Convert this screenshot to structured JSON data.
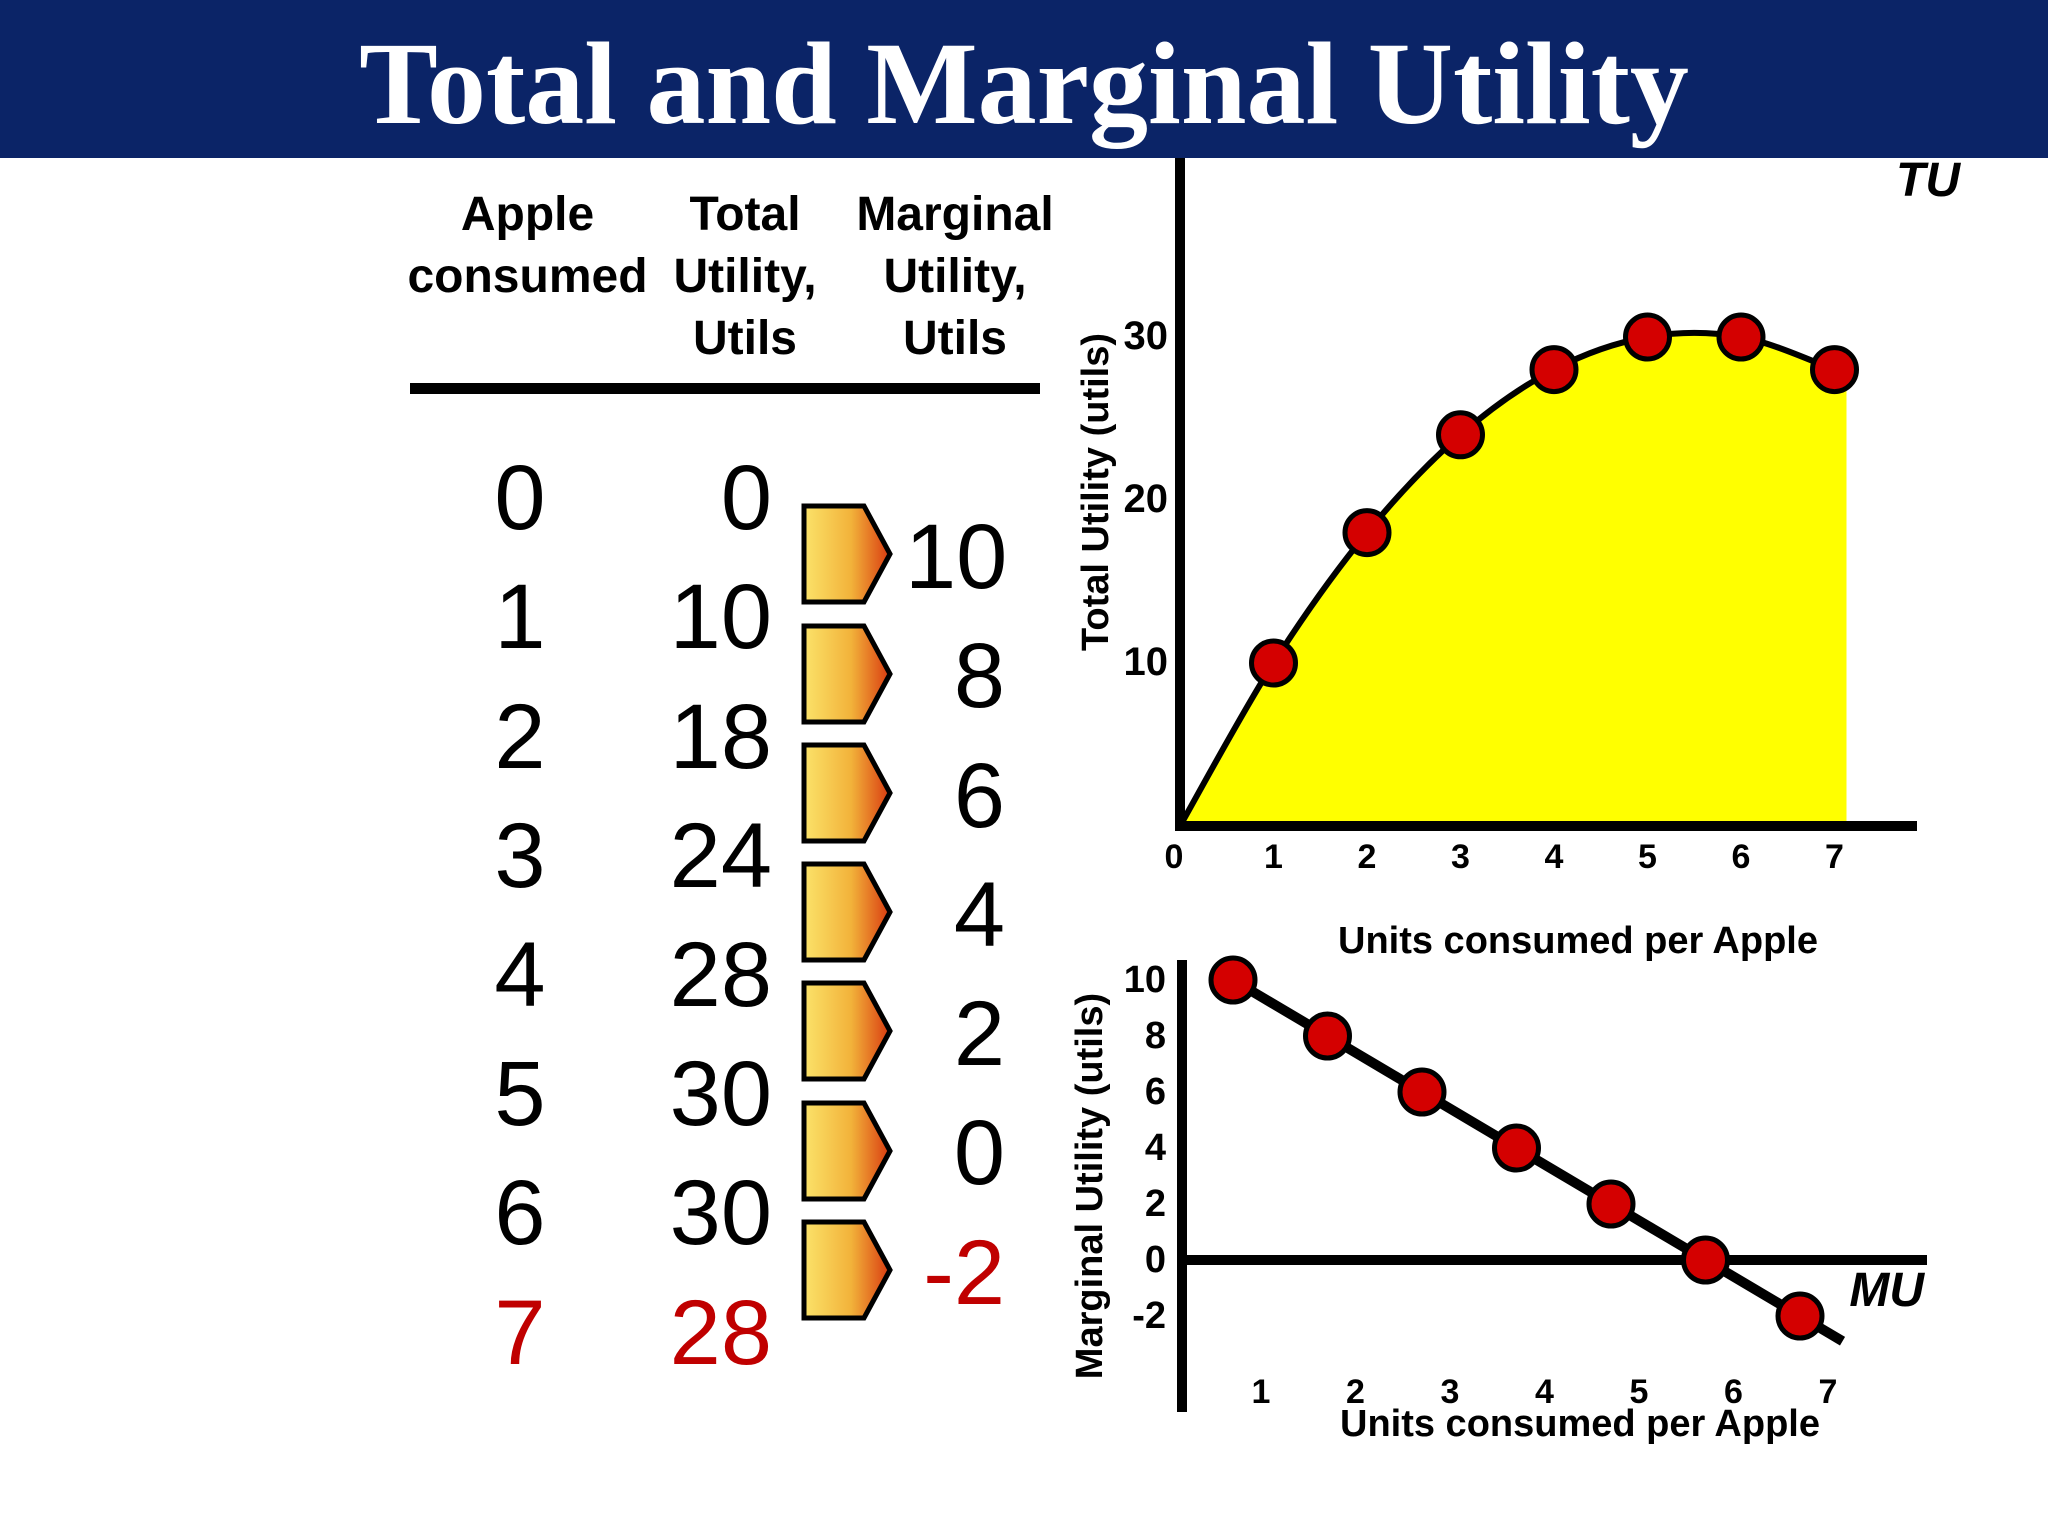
{
  "title": "Total and Marginal Utility",
  "table": {
    "headers": {
      "apple": [
        "Apple",
        "consumed"
      ],
      "total": [
        "Total",
        "Utility,",
        "Utils"
      ],
      "marginal": [
        "Marginal",
        "Utility,",
        "Utils"
      ]
    },
    "apples": [
      "0",
      "1",
      "2",
      "3",
      "4",
      "5",
      "6",
      "7"
    ],
    "total_utility": [
      "0",
      "10",
      "18",
      "24",
      "28",
      "30",
      "30",
      "28"
    ],
    "marginal_utility": [
      "10",
      "8",
      "6",
      "4",
      "2",
      "0",
      "-2"
    ]
  },
  "colors": {
    "title_bar": "#0b2467",
    "highlight": "#c00000",
    "area_fill": "#ffff00",
    "marker": "#d40000"
  },
  "chart_data": [
    {
      "type": "area",
      "curve_label": "TU",
      "ylabel": "Total Utility (utils)",
      "xlabel": "Units consumed per Apple",
      "x_ticks": [
        "0",
        "1",
        "2",
        "3",
        "4",
        "5",
        "6",
        "7"
      ],
      "y_ticks": [
        "10",
        "20",
        "30"
      ],
      "xlim": [
        0,
        8
      ],
      "ylim": [
        0,
        34
      ],
      "points": [
        {
          "x": 1,
          "y": 10
        },
        {
          "x": 2,
          "y": 18
        },
        {
          "x": 3,
          "y": 24
        },
        {
          "x": 4,
          "y": 28
        },
        {
          "x": 5,
          "y": 30
        },
        {
          "x": 6,
          "y": 30
        },
        {
          "x": 7,
          "y": 28
        }
      ]
    },
    {
      "type": "line",
      "curve_label": "MU",
      "ylabel": "Marginal Utility (utils)",
      "xlabel": "Units consumed per Apple",
      "x_ticks": [
        "1",
        "2",
        "3",
        "4",
        "5",
        "6",
        "7"
      ],
      "y_ticks": [
        "10",
        "8",
        "6",
        "4",
        "2",
        "0",
        "-2"
      ],
      "xlim": [
        0,
        8
      ],
      "ylim": [
        -4,
        11
      ],
      "points": [
        {
          "x": 1,
          "y": 10
        },
        {
          "x": 2,
          "y": 8
        },
        {
          "x": 3,
          "y": 6
        },
        {
          "x": 4,
          "y": 4
        },
        {
          "x": 5,
          "y": 2
        },
        {
          "x": 6,
          "y": 0
        },
        {
          "x": 7,
          "y": -2
        }
      ]
    }
  ]
}
